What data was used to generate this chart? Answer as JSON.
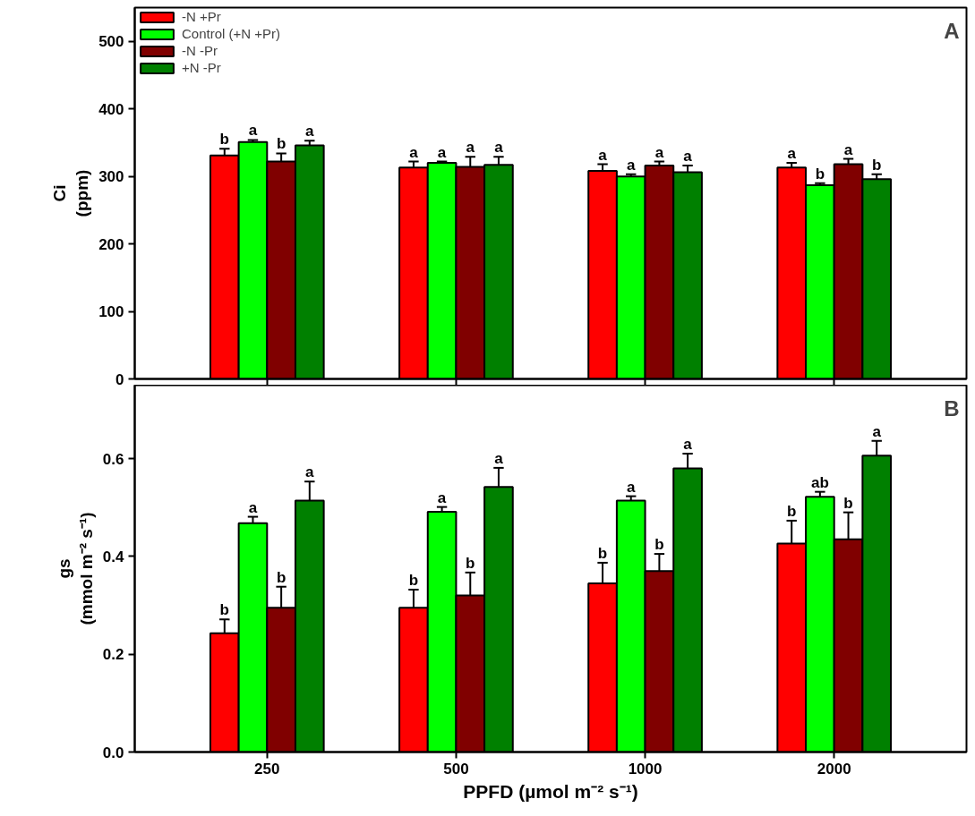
{
  "chart_data": [
    {
      "type": "bar",
      "categories": [
        "250",
        "500",
        "1000",
        "2000"
      ],
      "ylabel": "Ci\n(ppm)",
      "ylim": [
        0,
        550
      ],
      "yticks": [
        0,
        100,
        200,
        300,
        400,
        500
      ],
      "tick_labels": "y",
      "legend": "top left",
      "annotations": [
        "A"
      ],
      "series": [
        {
          "name": "-N +Pr",
          "color": "#ff0000",
          "values": [
            331,
            313,
            308,
            313
          ],
          "errors": [
            [
              331,
              341
            ],
            [
              313,
              322
            ],
            [
              308,
              318
            ],
            [
              313,
              320
            ]
          ],
          "value_labels": [
            "b",
            "a",
            "a",
            "a"
          ]
        },
        {
          "name": "Control (+N +Pr)",
          "color": "#00ff00",
          "values": [
            351,
            320,
            300,
            287
          ],
          "errors": [
            [
              351,
              354
            ],
            [
              320,
              322
            ],
            [
              300,
              303
            ],
            [
              287,
              290
            ]
          ],
          "value_labels": [
            "a",
            "a",
            "a",
            "b"
          ]
        },
        {
          "name": "-N -Pr",
          "color": "#800000",
          "values": [
            322,
            314,
            316,
            318
          ],
          "errors": [
            [
              322,
              334
            ],
            [
              314,
              329
            ],
            [
              316,
              322
            ],
            [
              318,
              326
            ]
          ],
          "value_labels": [
            "b",
            "a",
            "a",
            "a"
          ]
        },
        {
          "name": "+N -Pr",
          "color": "#008000",
          "values": [
            346,
            317,
            306,
            296
          ],
          "errors": [
            [
              346,
              353
            ],
            [
              317,
              329
            ],
            [
              306,
              316
            ],
            [
              296,
              303
            ]
          ],
          "value_labels": [
            "a",
            "a",
            "a",
            "b"
          ]
        }
      ]
    },
    {
      "type": "bar",
      "categories": [
        "250",
        "500",
        "1000",
        "2000"
      ],
      "xlabel": "PPFD (µmol m⁻² s⁻¹)",
      "ylabel": "gs\n(mmol m⁻² s⁻¹)",
      "ylim": [
        0,
        0.75
      ],
      "yticks": [
        {
          "value": 0,
          "label": "0.0"
        },
        0.2,
        0.4,
        0.6
      ],
      "annotations": [
        "B"
      ],
      "series": [
        {
          "color": "#ff0000",
          "values": [
            0.243,
            0.295,
            0.345,
            0.426
          ],
          "errors": [
            [
              0.243,
              0.271
            ],
            [
              0.295,
              0.332
            ],
            [
              0.345,
              0.387
            ],
            [
              0.426,
              0.473
            ]
          ],
          "value_labels": [
            "b",
            "b",
            "b",
            "b"
          ]
        },
        {
          "color": "#00ff00",
          "values": [
            0.468,
            0.491,
            0.514,
            0.522
          ],
          "errors": [
            [
              0.468,
              0.481
            ],
            [
              0.491,
              0.501
            ],
            [
              0.514,
              0.523
            ],
            [
              0.522,
              0.532
            ]
          ],
          "value_labels": [
            "a",
            "a",
            "a",
            "ab"
          ]
        },
        {
          "color": "#800000",
          "values": [
            0.295,
            0.32,
            0.37,
            0.435
          ],
          "errors": [
            [
              0.295,
              0.338
            ],
            [
              0.32,
              0.367
            ],
            [
              0.37,
              0.405
            ],
            [
              0.435,
              0.49
            ]
          ],
          "value_labels": [
            "b",
            "b",
            "b",
            "b"
          ]
        },
        {
          "color": "#008000",
          "values": [
            0.514,
            0.542,
            0.58,
            0.606
          ],
          "errors": [
            [
              0.514,
              0.553
            ],
            [
              0.542,
              0.581
            ],
            [
              0.58,
              0.61
            ],
            [
              0.606,
              0.636
            ]
          ],
          "value_labels": [
            "a",
            "a",
            "a",
            "a"
          ]
        }
      ]
    }
  ]
}
